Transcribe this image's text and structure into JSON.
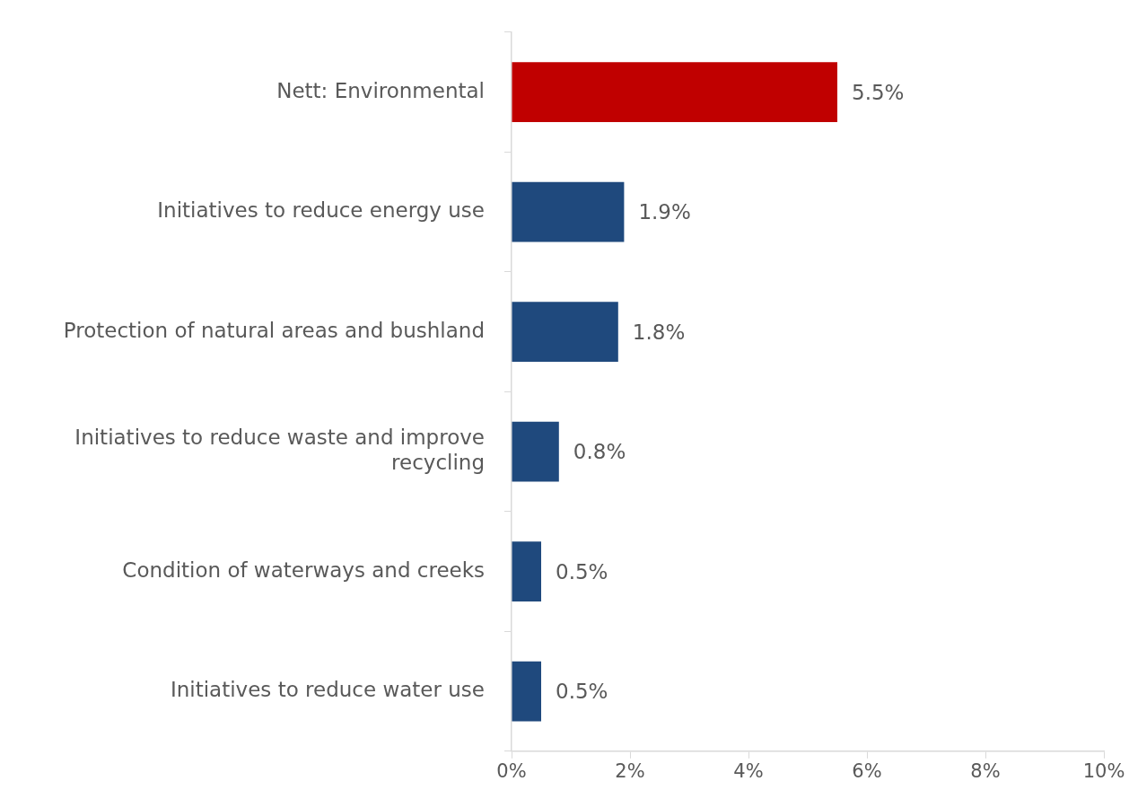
{
  "chart_data": {
    "type": "bar",
    "orientation": "horizontal",
    "categories": [
      "Nett: Environmental",
      "Initiatives to reduce energy use",
      "Protection of natural areas and bushland",
      "Initiatives to reduce waste and improve recycling",
      "Condition of waterways and creeks",
      "Initiatives to reduce water use"
    ],
    "values": [
      5.5,
      1.9,
      1.8,
      0.8,
      0.5,
      0.5
    ],
    "colors": [
      "#c00000",
      "#1f497d",
      "#1f497d",
      "#1f497d",
      "#1f497d",
      "#1f497d"
    ],
    "value_labels": [
      "5.5%",
      "1.9%",
      "1.8%",
      "0.8%",
      "0.5%",
      "0.5%"
    ],
    "xlim": [
      0,
      10
    ],
    "xticks": [
      {
        "value": 0,
        "label": "0%"
      },
      {
        "value": 2,
        "label": "2%"
      },
      {
        "value": 4,
        "label": "4%"
      },
      {
        "value": 6,
        "label": "6%"
      },
      {
        "value": 8,
        "label": "8%"
      },
      {
        "value": 10,
        "label": "10%"
      }
    ],
    "grid": false,
    "legend": false
  }
}
